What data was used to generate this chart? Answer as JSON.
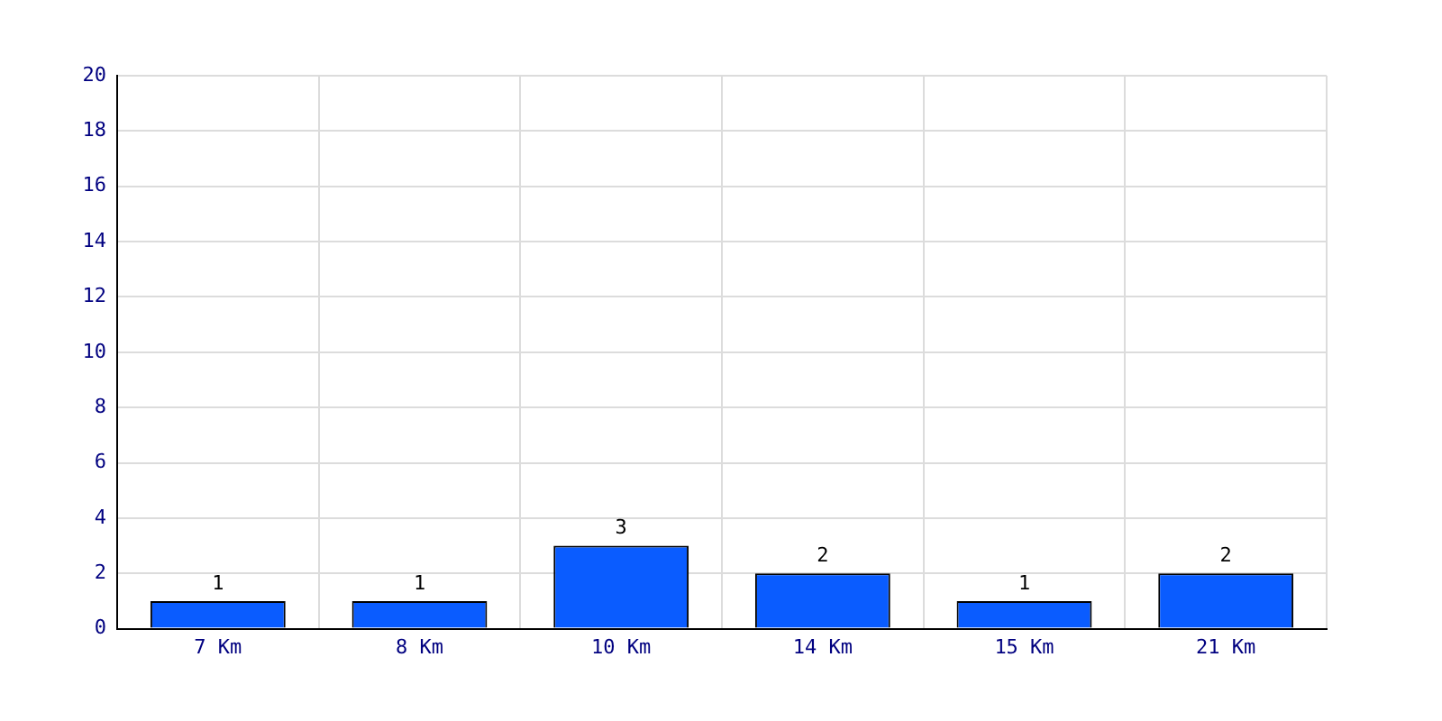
{
  "chart_data": {
    "type": "bar",
    "categories": [
      "7 Km",
      "8 Km",
      "10 Km",
      "14 Km",
      "15 Km",
      "21 Km"
    ],
    "values": [
      1,
      1,
      3,
      2,
      1,
      2
    ],
    "color": "#0a5cff",
    "ylim": [
      0,
      20
    ],
    "yticks": [
      0,
      2,
      4,
      6,
      8,
      10,
      12,
      14,
      16,
      18,
      20
    ],
    "grid": true,
    "legend": false,
    "data_labels": true
  }
}
